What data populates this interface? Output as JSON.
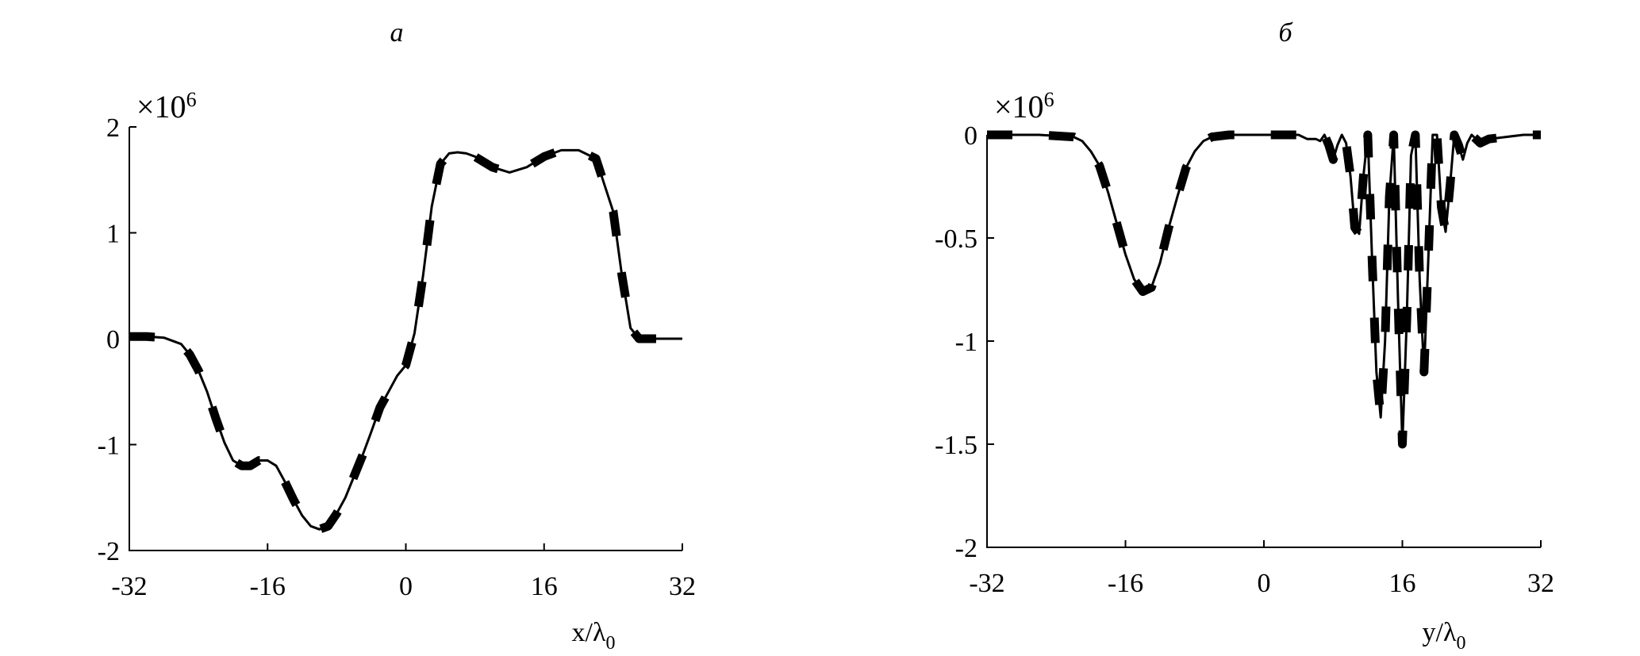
{
  "chart_data": [
    {
      "type": "line",
      "panel_label": "а",
      "multiplier": "×10",
      "multiplier_exp": "6",
      "xlabel_main": "x/λ",
      "xlabel_sub": "0",
      "xlim": [
        -32,
        32
      ],
      "ylim": [
        -2,
        2
      ],
      "xticks": [
        -32,
        -16,
        0,
        16,
        32
      ],
      "yticks": [
        -2,
        -1,
        0,
        1,
        2
      ],
      "xtick_labels": [
        "-32",
        "-16",
        "0",
        "16",
        "32"
      ],
      "ytick_labels": [
        "-2",
        "-1",
        "0",
        "1",
        "2"
      ],
      "series": [
        {
          "style": "solid",
          "x": [
            -32,
            -30,
            -28,
            -26,
            -25,
            -24,
            -23,
            -22,
            -21,
            -20,
            -19,
            -18,
            -17,
            -16,
            -15,
            -14,
            -13,
            -12,
            -11,
            -10,
            -9,
            -8,
            -7,
            -6,
            -5,
            -4,
            -3,
            -2,
            -1,
            0,
            1,
            2,
            3,
            4,
            5,
            6,
            7,
            8,
            10,
            12,
            14,
            16,
            18,
            20,
            22,
            24,
            25,
            26,
            27,
            28,
            29,
            30,
            32
          ],
          "y": [
            0.02,
            0.02,
            0.01,
            -0.05,
            -0.15,
            -0.3,
            -0.5,
            -0.75,
            -0.98,
            -1.15,
            -1.2,
            -1.2,
            -1.15,
            -1.15,
            -1.2,
            -1.35,
            -1.52,
            -1.67,
            -1.77,
            -1.8,
            -1.77,
            -1.65,
            -1.5,
            -1.3,
            -1.1,
            -0.88,
            -0.65,
            -0.5,
            -0.35,
            -0.25,
            0.05,
            0.6,
            1.25,
            1.65,
            1.75,
            1.76,
            1.75,
            1.72,
            1.62,
            1.57,
            1.62,
            1.72,
            1.78,
            1.78,
            1.7,
            1.2,
            0.6,
            0.1,
            0.0,
            0.0,
            0.0,
            0.0,
            0.0
          ]
        },
        {
          "style": "dashed",
          "x": [
            -32,
            -30,
            -28,
            -26,
            -25,
            -24,
            -23,
            -22,
            -21,
            -20,
            -19,
            -18,
            -17,
            -16,
            -15,
            -14,
            -13,
            -12,
            -11,
            -10,
            -9,
            -8,
            -7,
            -6,
            -5,
            -4,
            -3,
            -2,
            -1,
            0,
            1,
            2,
            3,
            4,
            5,
            6,
            7,
            8,
            10,
            12,
            14,
            16,
            18,
            20,
            22,
            24,
            25,
            26,
            27,
            28,
            29,
            30,
            32
          ],
          "y": [
            0.02,
            0.02,
            0.01,
            -0.05,
            -0.15,
            -0.3,
            -0.5,
            -0.75,
            -0.98,
            -1.15,
            -1.2,
            -1.2,
            -1.15,
            -1.15,
            -1.2,
            -1.35,
            -1.52,
            -1.67,
            -1.77,
            -1.8,
            -1.77,
            -1.65,
            -1.5,
            -1.3,
            -1.1,
            -0.88,
            -0.65,
            -0.5,
            -0.35,
            -0.25,
            0.05,
            0.6,
            1.25,
            1.65,
            1.75,
            1.76,
            1.75,
            1.72,
            1.62,
            1.57,
            1.62,
            1.72,
            1.78,
            1.78,
            1.7,
            1.2,
            0.6,
            0.1,
            0.0,
            0.0,
            0.0,
            0.0,
            0.0
          ]
        }
      ]
    },
    {
      "type": "line",
      "panel_label": "б",
      "multiplier": "×10",
      "multiplier_exp": "6",
      "xlabel_main": "y/λ",
      "xlabel_sub": "0",
      "xlim": [
        -32,
        32
      ],
      "ylim": [
        -2,
        0
      ],
      "xticks": [
        -32,
        -16,
        0,
        16,
        32
      ],
      "yticks": [
        -2,
        -1.5,
        -1,
        -0.5,
        0
      ],
      "xtick_labels": [
        "-32",
        "-16",
        "0",
        "16",
        "32"
      ],
      "ytick_labels": [
        "-2",
        "-1.5",
        "-1",
        "-0.5",
        "0"
      ],
      "series": [
        {
          "style": "solid",
          "x": [
            -32,
            -26,
            -22,
            -21,
            -20,
            -19,
            -18,
            -17,
            -16,
            -15,
            -14,
            -13,
            -12,
            -11,
            -10,
            -9,
            -8,
            -7,
            -6,
            -4,
            0,
            4,
            5,
            6,
            6.5,
            7,
            7.5,
            8,
            8.5,
            9,
            9.5,
            10,
            10.5,
            11,
            11.5,
            12,
            12.5,
            13,
            13.5,
            14,
            14.5,
            15,
            15.5,
            16,
            16.5,
            17,
            17.5,
            18,
            18.5,
            19,
            19.5,
            20,
            20.5,
            21,
            21.5,
            22,
            22.5,
            23,
            23.5,
            24,
            25,
            26,
            28,
            30,
            32
          ],
          "y": [
            0,
            0,
            -0.01,
            -0.03,
            -0.08,
            -0.15,
            -0.28,
            -0.43,
            -0.58,
            -0.7,
            -0.76,
            -0.74,
            -0.62,
            -0.45,
            -0.3,
            -0.16,
            -0.08,
            -0.03,
            -0.01,
            0,
            0,
            0,
            -0.02,
            -0.02,
            -0.03,
            0,
            -0.05,
            -0.12,
            -0.05,
            0,
            -0.04,
            -0.2,
            -0.45,
            -0.48,
            -0.2,
            0,
            -0.6,
            -1.15,
            -1.37,
            -1.0,
            -0.3,
            0,
            -0.8,
            -1.5,
            -0.9,
            -0.1,
            0,
            -0.7,
            -1.15,
            -0.6,
            0,
            0,
            -0.35,
            -0.47,
            -0.25,
            0,
            -0.05,
            -0.12,
            -0.04,
            0,
            -0.04,
            -0.02,
            -0.01,
            0,
            0
          ]
        },
        {
          "style": "dashed",
          "x": [
            -32,
            -26,
            -22,
            -21,
            -20,
            -19,
            -18,
            -17,
            -16,
            -15,
            -14,
            -13,
            -12,
            -11,
            -10,
            -9,
            -8,
            -7,
            -6,
            -4,
            0,
            4,
            5,
            6,
            6.5,
            7,
            7.5,
            8,
            8.5,
            9,
            9.5,
            10,
            10.5,
            11,
            11.5,
            12,
            12.5,
            13,
            13.5,
            14,
            14.5,
            15,
            15.5,
            16,
            16.5,
            17,
            17.5,
            18,
            18.5,
            19,
            19.5,
            20,
            20.5,
            21,
            21.5,
            22,
            22.5,
            23,
            23.5,
            24,
            25,
            26,
            28,
            30,
            32
          ],
          "y": [
            0,
            0,
            -0.01,
            -0.03,
            -0.08,
            -0.15,
            -0.28,
            -0.43,
            -0.58,
            -0.7,
            -0.76,
            -0.74,
            -0.62,
            -0.45,
            -0.3,
            -0.16,
            -0.08,
            -0.03,
            -0.01,
            0,
            0,
            0,
            -0.02,
            -0.02,
            -0.03,
            0,
            -0.05,
            -0.12,
            -0.05,
            0,
            -0.04,
            -0.2,
            -0.45,
            -0.48,
            -0.2,
            0,
            -0.6,
            -1.15,
            -1.37,
            -1.0,
            -0.3,
            0,
            -0.8,
            -1.5,
            -0.9,
            -0.1,
            0,
            -0.7,
            -1.15,
            -0.6,
            0,
            0,
            -0.35,
            -0.47,
            -0.25,
            0,
            -0.05,
            -0.12,
            -0.04,
            0,
            -0.04,
            -0.02,
            -0.01,
            0,
            0
          ]
        }
      ]
    }
  ]
}
